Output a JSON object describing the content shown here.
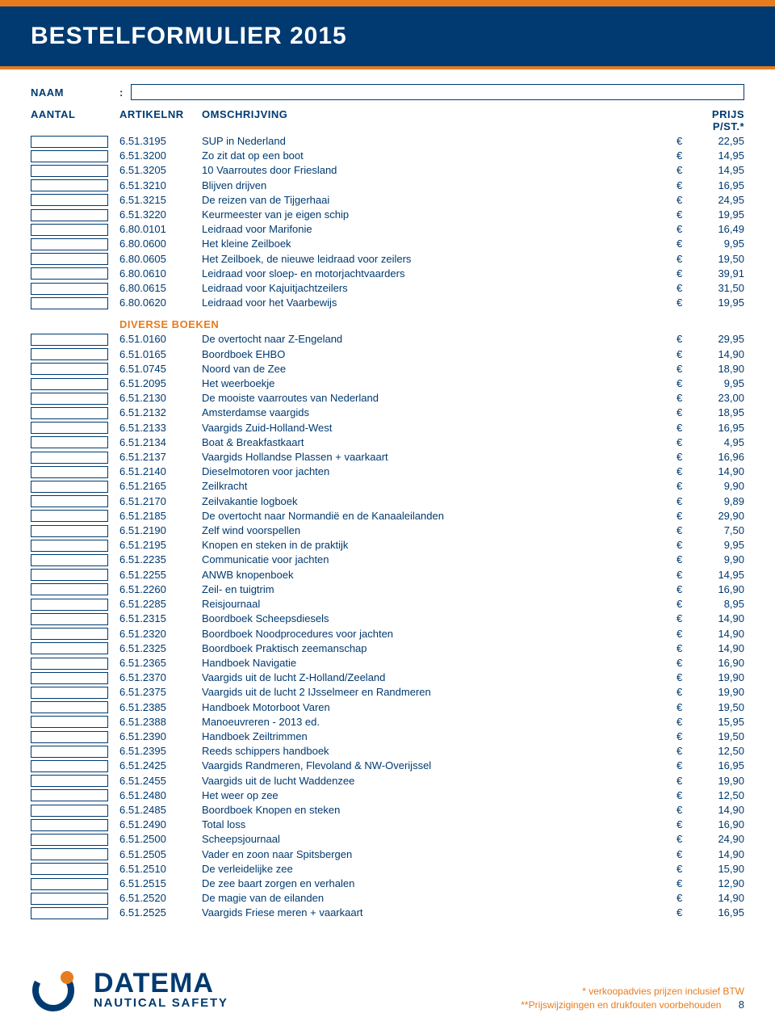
{
  "colors": {
    "brand_blue": "#003a70",
    "brand_orange": "#e67c1f",
    "background": "#ffffff"
  },
  "typography": {
    "body_fontsize_pt": 10,
    "title_fontsize_pt": 22,
    "font_family": "Arial"
  },
  "header": {
    "title": "BESTELFORMULIER 2015"
  },
  "form": {
    "naam_label": "NAAM",
    "colon": ":",
    "columns": {
      "qty": "AANTAL",
      "article": "ARTIKELNR",
      "description": "OMSCHRIJVING",
      "price": "PRIJS P/ST.*"
    }
  },
  "currency": "€",
  "sections": [
    {
      "title": null,
      "rows": [
        {
          "art": "6.51.3195",
          "desc": "SUP in Nederland",
          "price": "22,95"
        },
        {
          "art": "6.51.3200",
          "desc": "Zo zit dat op een boot",
          "price": "14,95"
        },
        {
          "art": "6.51.3205",
          "desc": "10 Vaarroutes door Friesland",
          "price": "14,95"
        },
        {
          "art": "6.51.3210",
          "desc": "Blijven drijven",
          "price": "16,95"
        },
        {
          "art": "6.51.3215",
          "desc": "De reizen van de Tijgerhaai",
          "price": "24,95"
        },
        {
          "art": "6.51.3220",
          "desc": "Keurmeester van je eigen schip",
          "price": "19,95"
        },
        {
          "art": "6.80.0101",
          "desc": "Leidraad voor Marifonie",
          "price": "16,49"
        },
        {
          "art": "6.80.0600",
          "desc": "Het kleine Zeilboek",
          "price": "9,95"
        },
        {
          "art": "6.80.0605",
          "desc": "Het Zeilboek, de nieuwe leidraad voor zeilers",
          "price": "19,50"
        },
        {
          "art": "6.80.0610",
          "desc": "Leidraad voor sloep- en motorjachtvaarders",
          "price": "39,91"
        },
        {
          "art": "6.80.0615",
          "desc": "Leidraad voor Kajuitjachtzeilers",
          "price": "31,50"
        },
        {
          "art": "6.80.0620",
          "desc": "Leidraad voor het Vaarbewijs",
          "price": "19,95"
        }
      ]
    },
    {
      "title": "DIVERSE BOEKEN",
      "rows": [
        {
          "art": "6.51.0160",
          "desc": "De overtocht naar Z-Engeland",
          "price": "29,95"
        },
        {
          "art": "6.51.0165",
          "desc": "Boordboek EHBO",
          "price": "14,90"
        },
        {
          "art": "6.51.0745",
          "desc": "Noord van de Zee",
          "price": "18,90"
        },
        {
          "art": "6.51.2095",
          "desc": "Het weerboekje",
          "price": "9,95"
        },
        {
          "art": "6.51.2130",
          "desc": "De mooiste vaarroutes van Nederland",
          "price": "23,00"
        },
        {
          "art": "6.51.2132",
          "desc": "Amsterdamse vaargids",
          "price": "18,95"
        },
        {
          "art": "6.51.2133",
          "desc": "Vaargids Zuid-Holland-West",
          "price": "16,95"
        },
        {
          "art": "6.51.2134",
          "desc": "Boat & Breakfastkaart",
          "price": "4,95"
        },
        {
          "art": "6.51.2137",
          "desc": "Vaargids Hollandse Plassen + vaarkaart",
          "price": "16,96"
        },
        {
          "art": "6.51.2140",
          "desc": "Dieselmotoren voor jachten",
          "price": "14,90"
        },
        {
          "art": "6.51.2165",
          "desc": "Zeilkracht",
          "price": "9,90"
        },
        {
          "art": "6.51.2170",
          "desc": "Zeilvakantie logboek",
          "price": "9,89"
        },
        {
          "art": "6.51.2185",
          "desc": "De overtocht naar Normandië en de Kanaaleilanden",
          "price": "29,90"
        },
        {
          "art": "6.51.2190",
          "desc": "Zelf wind voorspellen",
          "price": "7,50"
        },
        {
          "art": "6.51.2195",
          "desc": "Knopen en steken in de praktijk",
          "price": "9,95"
        },
        {
          "art": "6.51.2235",
          "desc": "Communicatie voor jachten",
          "price": "9,90"
        },
        {
          "art": "6.51.2255",
          "desc": "ANWB knopenboek",
          "price": "14,95"
        },
        {
          "art": "6.51.2260",
          "desc": "Zeil- en tuigtrim",
          "price": "16,90"
        },
        {
          "art": "6.51.2285",
          "desc": "Reisjournaal",
          "price": "8,95"
        },
        {
          "art": "6.51.2315",
          "desc": "Boordboek Scheepsdiesels",
          "price": "14,90"
        },
        {
          "art": "6.51.2320",
          "desc": "Boordboek Noodprocedures voor jachten",
          "price": "14,90"
        },
        {
          "art": "6.51.2325",
          "desc": "Boordboek Praktisch zeemanschap",
          "price": "14,90"
        },
        {
          "art": "6.51.2365",
          "desc": "Handboek Navigatie",
          "price": "16,90"
        },
        {
          "art": "6.51.2370",
          "desc": "Vaargids uit de lucht Z-Holland/Zeeland",
          "price": "19,90"
        },
        {
          "art": "6.51.2375",
          "desc": "Vaargids uit de lucht 2 IJsselmeer en Randmeren",
          "price": "19,90"
        },
        {
          "art": "6.51.2385",
          "desc": "Handboek Motorboot Varen",
          "price": "19,50"
        },
        {
          "art": "6.51.2388",
          "desc": "Manoeuvreren - 2013 ed.",
          "price": "15,95"
        },
        {
          "art": "6.51.2390",
          "desc": "Handboek Zeiltrimmen",
          "price": "19,50"
        },
        {
          "art": "6.51.2395",
          "desc": "Reeds schippers handboek",
          "price": "12,50"
        },
        {
          "art": "6.51.2425",
          "desc": "Vaargids Randmeren, Flevoland & NW-Overijssel",
          "price": "16,95"
        },
        {
          "art": "6.51.2455",
          "desc": "Vaargids uit de lucht Waddenzee",
          "price": "19,90"
        },
        {
          "art": "6.51.2480",
          "desc": "Het weer op zee",
          "price": "12,50"
        },
        {
          "art": "6.51.2485",
          "desc": "Boordboek Knopen en steken",
          "price": "14,90"
        },
        {
          "art": "6.51.2490",
          "desc": "Total loss",
          "price": "16,90"
        },
        {
          "art": "6.51.2500",
          "desc": "Scheepsjournaal",
          "price": "24,90"
        },
        {
          "art": "6.51.2505",
          "desc": "Vader en zoon naar Spitsbergen",
          "price": "14,90"
        },
        {
          "art": "6.51.2510",
          "desc": "De verleidelijke zee",
          "price": "15,90"
        },
        {
          "art": "6.51.2515",
          "desc": "De zee baart zorgen en verhalen",
          "price": "12,90"
        },
        {
          "art": "6.51.2520",
          "desc": "De magie van de eilanden",
          "price": "14,90"
        },
        {
          "art": "6.51.2525",
          "desc": "Vaargids Friese meren + vaarkaart",
          "price": "16,95"
        }
      ]
    }
  ],
  "footer": {
    "brand": "DATEMA",
    "subtitle": "NAUTICAL SAFETY",
    "note1": "* verkoopadvies prijzen inclusief BTW",
    "note2": "**Prijswijzigingen en drukfouten voorbehouden",
    "page": "8"
  }
}
